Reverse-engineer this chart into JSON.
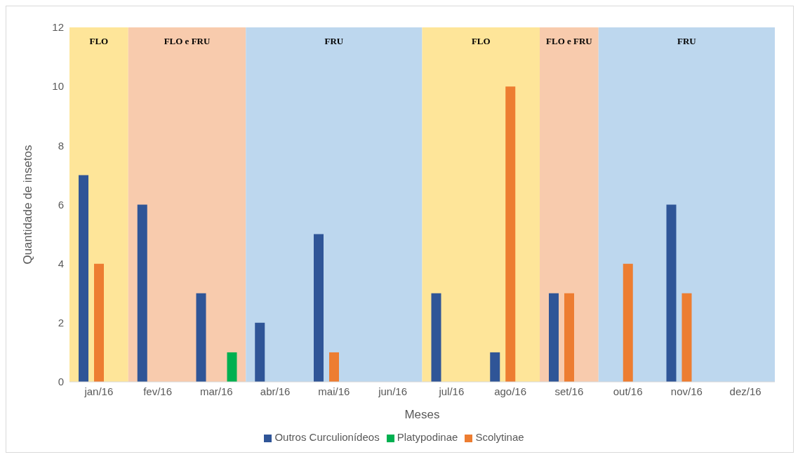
{
  "chart_data": {
    "type": "bar",
    "xlabel": "Meses",
    "ylabel": "Quantidade de insetos",
    "categories": [
      "jan/16",
      "fev/16",
      "mar/16",
      "abr/16",
      "mai/16",
      "jun/16",
      "jul/16",
      "ago/16",
      "set/16",
      "out/16",
      "nov/16",
      "dez/16"
    ],
    "series": [
      {
        "name": "Outros Curculionídeos",
        "color": "#2f5597",
        "values": [
          7,
          6,
          3,
          2,
          5,
          0,
          3,
          1,
          3,
          0,
          6,
          0
        ]
      },
      {
        "name": "Scolytinae",
        "color": "#ed7d31",
        "values": [
          4,
          0,
          0,
          0,
          1,
          0,
          0,
          10,
          3,
          4,
          3,
          0
        ]
      },
      {
        "name": "Platypodinae",
        "color": "#00b050",
        "values": [
          0,
          0,
          1,
          0,
          0,
          0,
          0,
          0,
          0,
          0,
          0,
          0
        ]
      }
    ],
    "ylim": [
      0,
      12
    ],
    "yticks": [
      0,
      2,
      4,
      6,
      8,
      10,
      12
    ],
    "grid": false,
    "legend": "bottom",
    "bands": [
      {
        "axis": "x",
        "from": "jan/16",
        "to": "jan/16",
        "label": "FLO",
        "color": "#fee599"
      },
      {
        "axis": "x",
        "from": "fev/16",
        "to": "mar/16",
        "label": "FLO e FRU",
        "color": "#f8cbad"
      },
      {
        "axis": "x",
        "from": "abr/16",
        "to": "jun/16",
        "label": "FRU",
        "color": "#bdd7ee"
      },
      {
        "axis": "x",
        "from": "jul/16",
        "to": "ago/16",
        "label": "FLO",
        "color": "#fee599"
      },
      {
        "axis": "x",
        "from": "set/16",
        "to": "set/16",
        "label": "FLO e FRU",
        "color": "#f8cbad"
      },
      {
        "axis": "x",
        "from": "out/16",
        "to": "dez/16",
        "label": "FRU",
        "color": "#bdd7ee"
      }
    ]
  }
}
